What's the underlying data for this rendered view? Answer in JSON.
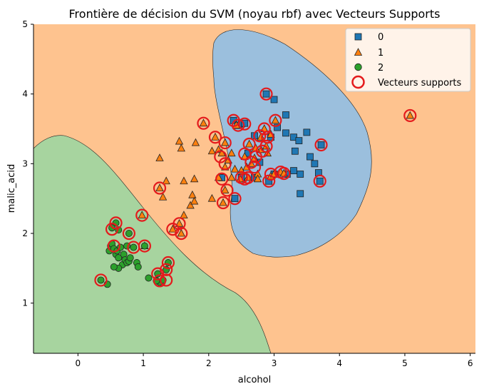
{
  "chart_data": {
    "type": "scatter",
    "title": "Frontière de décision du SVM (noyau rbf) avec Vecteurs Supports",
    "xlabel": "alcohol",
    "ylabel": "malic_acid",
    "xlim": [
      -0.68,
      6.08
    ],
    "ylim": [
      0.28,
      5.0
    ],
    "xticks": [
      0,
      1,
      2,
      3,
      4,
      5,
      6
    ],
    "yticks": [
      1,
      2,
      3,
      4,
      5
    ],
    "legend_position": "top-right",
    "grid": false,
    "region_colors": {
      "0": "#9bbfdd",
      "1": "#fec38f",
      "2": "#a7d49f"
    },
    "series": [
      {
        "name": "0",
        "marker": "square",
        "color": "#1f77b4",
        "points": [
          [
            2.38,
            3.62
          ],
          [
            2.45,
            3.55
          ],
          [
            2.5,
            3.57
          ],
          [
            2.55,
            3.58
          ],
          [
            2.7,
            3.4
          ],
          [
            2.88,
            4.0
          ],
          [
            3.0,
            3.92
          ],
          [
            3.18,
            3.7
          ],
          [
            3.05,
            3.52
          ],
          [
            2.95,
            3.38
          ],
          [
            3.18,
            3.44
          ],
          [
            3.3,
            3.38
          ],
          [
            3.38,
            3.33
          ],
          [
            3.5,
            3.45
          ],
          [
            3.32,
            3.18
          ],
          [
            3.55,
            3.1
          ],
          [
            3.62,
            3.0
          ],
          [
            3.68,
            2.87
          ],
          [
            3.72,
            3.27
          ],
          [
            3.7,
            2.75
          ],
          [
            3.4,
            2.85
          ],
          [
            3.3,
            2.9
          ],
          [
            3.4,
            2.57
          ],
          [
            3.2,
            2.85
          ],
          [
            3.0,
            2.85
          ],
          [
            2.92,
            2.75
          ],
          [
            2.7,
            2.8
          ],
          [
            2.5,
            2.8
          ],
          [
            2.4,
            2.5
          ],
          [
            2.2,
            2.8
          ],
          [
            2.6,
            3.15
          ],
          [
            2.78,
            3.02
          ]
        ]
      },
      {
        "name": "1",
        "marker": "triangle",
        "color": "#ff7f0e",
        "points": [
          [
            1.25,
            3.08
          ],
          [
            1.35,
            2.75
          ],
          [
            1.3,
            2.52
          ],
          [
            1.25,
            2.65
          ],
          [
            1.55,
            3.32
          ],
          [
            1.58,
            3.22
          ],
          [
            1.8,
            3.3
          ],
          [
            1.62,
            2.75
          ],
          [
            1.75,
            2.55
          ],
          [
            1.78,
            2.78
          ],
          [
            1.72,
            2.4
          ],
          [
            1.78,
            2.46
          ],
          [
            1.62,
            2.26
          ],
          [
            1.55,
            2.14
          ],
          [
            1.58,
            2.0
          ],
          [
            1.45,
            2.06
          ],
          [
            1.92,
            3.58
          ],
          [
            2.1,
            3.38
          ],
          [
            2.15,
            3.2
          ],
          [
            2.05,
            3.18
          ],
          [
            2.2,
            3.15
          ],
          [
            2.25,
            3.3
          ],
          [
            2.3,
            3.05
          ],
          [
            2.25,
            2.95
          ],
          [
            2.35,
            3.15
          ],
          [
            2.42,
            3.55
          ],
          [
            2.15,
            2.8
          ],
          [
            2.05,
            2.5
          ],
          [
            2.25,
            2.62
          ],
          [
            2.22,
            2.44
          ],
          [
            2.35,
            2.8
          ],
          [
            2.5,
            2.9
          ],
          [
            2.55,
            3.1
          ],
          [
            2.58,
            2.95
          ],
          [
            2.65,
            3.0
          ],
          [
            2.7,
            3.08
          ],
          [
            2.75,
            2.85
          ],
          [
            2.6,
            2.8
          ],
          [
            2.8,
            3.2
          ],
          [
            2.88,
            3.25
          ],
          [
            2.85,
            3.5
          ],
          [
            2.95,
            3.42
          ],
          [
            2.8,
            3.38
          ],
          [
            2.9,
            3.15
          ],
          [
            2.62,
            3.28
          ],
          [
            2.72,
            3.22
          ],
          [
            2.4,
            2.92
          ],
          [
            2.48,
            2.78
          ],
          [
            2.95,
            2.82
          ],
          [
            3.02,
            3.62
          ],
          [
            3.1,
            2.88
          ],
          [
            3.15,
            2.86
          ],
          [
            3.0,
            2.85
          ],
          [
            2.75,
            2.78
          ],
          [
            0.98,
            2.26
          ],
          [
            1.02,
            1.82
          ],
          [
            5.08,
            3.69
          ]
        ]
      },
      {
        "name": "2",
        "marker": "circle",
        "color": "#2ca02c",
        "points": [
          [
            0.35,
            1.33
          ],
          [
            0.45,
            1.27
          ],
          [
            0.48,
            1.75
          ],
          [
            0.5,
            1.82
          ],
          [
            0.52,
            1.85
          ],
          [
            0.55,
            1.78
          ],
          [
            0.58,
            1.7
          ],
          [
            0.6,
            1.75
          ],
          [
            0.62,
            1.65
          ],
          [
            0.65,
            1.8
          ],
          [
            0.68,
            1.55
          ],
          [
            0.7,
            1.7
          ],
          [
            0.72,
            1.62
          ],
          [
            0.75,
            1.58
          ],
          [
            0.78,
            1.6
          ],
          [
            0.8,
            1.65
          ],
          [
            0.85,
            1.8
          ],
          [
            0.9,
            1.58
          ],
          [
            0.92,
            1.52
          ],
          [
            0.62,
            1.5
          ],
          [
            0.55,
            1.52
          ],
          [
            0.58,
            2.15
          ],
          [
            0.52,
            2.08
          ],
          [
            0.62,
            2.05
          ],
          [
            0.78,
            2.0
          ],
          [
            1.02,
            1.82
          ],
          [
            1.08,
            1.36
          ],
          [
            1.22,
            1.42
          ],
          [
            1.25,
            1.3
          ],
          [
            1.3,
            1.33
          ],
          [
            1.35,
            1.48
          ],
          [
            1.38,
            1.58
          ],
          [
            1.2,
            1.32
          ],
          [
            0.75,
            1.82
          ]
        ]
      }
    ],
    "support_vectors": {
      "name": "Vecteurs supports",
      "color": "#e41a1c",
      "points": [
        [
          0.35,
          1.33
        ],
        [
          0.52,
          2.06
        ],
        [
          0.58,
          2.15
        ],
        [
          0.55,
          1.82
        ],
        [
          0.78,
          2.0
        ],
        [
          0.85,
          1.8
        ],
        [
          0.98,
          2.26
        ],
        [
          1.02,
          1.82
        ],
        [
          1.22,
          1.42
        ],
        [
          1.25,
          1.32
        ],
        [
          1.35,
          1.33
        ],
        [
          1.35,
          1.48
        ],
        [
          1.38,
          1.58
        ],
        [
          1.25,
          2.65
        ],
        [
          1.45,
          2.06
        ],
        [
          1.55,
          2.14
        ],
        [
          1.58,
          2.0
        ],
        [
          1.92,
          3.58
        ],
        [
          2.1,
          3.38
        ],
        [
          2.18,
          3.1
        ],
        [
          2.25,
          3.3
        ],
        [
          2.25,
          3.0
        ],
        [
          2.2,
          2.78
        ],
        [
          2.28,
          2.62
        ],
        [
          2.22,
          2.44
        ],
        [
          2.4,
          2.5
        ],
        [
          2.38,
          3.62
        ],
        [
          2.45,
          3.55
        ],
        [
          2.55,
          3.57
        ],
        [
          2.5,
          2.8
        ],
        [
          2.55,
          2.78
        ],
        [
          2.62,
          3.28
        ],
        [
          2.55,
          3.14
        ],
        [
          2.65,
          3.02
        ],
        [
          2.7,
          2.95
        ],
        [
          2.72,
          3.1
        ],
        [
          2.78,
          3.4
        ],
        [
          2.85,
          3.5
        ],
        [
          2.9,
          3.38
        ],
        [
          2.82,
          3.18
        ],
        [
          2.88,
          3.25
        ],
        [
          2.88,
          4.0
        ],
        [
          3.02,
          3.62
        ],
        [
          2.95,
          2.85
        ],
        [
          2.92,
          2.75
        ],
        [
          3.1,
          2.88
        ],
        [
          3.15,
          2.86
        ],
        [
          2.6,
          2.8
        ],
        [
          3.72,
          3.27
        ],
        [
          3.7,
          2.75
        ],
        [
          5.08,
          3.69
        ]
      ]
    }
  }
}
